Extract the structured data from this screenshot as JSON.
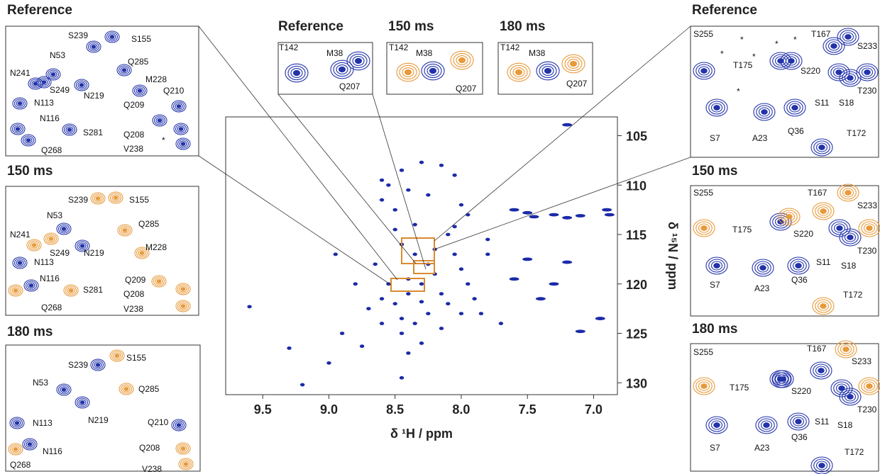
{
  "main": {
    "xlabel": "δ ¹H / ppm",
    "ylabel": "δ ¹⁵N / ppm",
    "xlim": [
      9.78,
      6.82
    ],
    "ylim": [
      103.1,
      131.2
    ],
    "xticks": [
      9.5,
      {
        "value": 9,
        "label": "9.0"
      },
      8.5,
      {
        "value": 8,
        "label": "8.0"
      },
      7.5,
      {
        "value": 7,
        "label": "7.0"
      }
    ],
    "yticks": [
      105,
      110,
      115,
      120,
      125,
      130
    ],
    "peaks": {
      "x": [
        8.45,
        8.35,
        8.25,
        8.2,
        8.3,
        8.4,
        8.5,
        8.6,
        8.15,
        8.1,
        8.0,
        8.25,
        8.35,
        8.45,
        8.55,
        8.65,
        8.05,
        8.1,
        8.4,
        8.2,
        8.3,
        8.45,
        8.3,
        8.4,
        8.6,
        8.7,
        7.95,
        7.9,
        7.85,
        8.15,
        8.0,
        7.8,
        8.5,
        8.35,
        8.55,
        8.6,
        8.4,
        8.25,
        8.15,
        8.05,
        8.6,
        8.45,
        8.3,
        8.0,
        7.95,
        8.05,
        8.5,
        9.6,
        9.3,
        9.2,
        9.0,
        8.9,
        8.8,
        8.95,
        7.6,
        7.5,
        7.45,
        7.3,
        7.2,
        7.1,
        6.9,
        6.88,
        7.2,
        7.5,
        7.6,
        7.3,
        7.2,
        7.4,
        6.95,
        7.1,
        7.7,
        7.8,
        8.75,
        8.45
      ],
      "y": [
        116,
        117,
        118,
        119,
        120,
        121,
        122,
        121.5,
        121,
        122,
        123,
        123,
        124,
        123.5,
        120,
        118,
        117,
        115,
        119.5,
        116.5,
        121.8,
        125,
        126,
        127,
        124,
        122.5,
        120,
        121.5,
        123,
        124.5,
        118.5,
        117,
        114.5,
        114,
        110,
        109.5,
        110.5,
        111,
        108,
        109,
        111.5,
        108.5,
        107.7,
        112,
        113,
        114.2,
        112.5,
        122.3,
        126.5,
        130.2,
        128,
        125,
        120,
        117,
        112.5,
        112.8,
        113.2,
        113,
        113.3,
        113.1,
        112.5,
        113,
        103.9,
        117.5,
        119.5,
        120,
        117.8,
        121.5,
        123.5,
        124.8,
        124,
        115.5,
        126.3,
        129.5
      ]
    }
  },
  "panels": [
    {
      "title": "Reference",
      "labels": [
        "S239",
        "S155",
        "N53",
        "Q285",
        "N241",
        "S249",
        "N219",
        "M228",
        "Q210",
        "N113",
        "Q209",
        "N116",
        "S281",
        "Q208",
        "*",
        "V238",
        "Q268"
      ]
    },
    {
      "title": "150 ms",
      "labels": [
        "S239",
        "S155",
        "N53",
        "Q285",
        "N241",
        "S249",
        "N219",
        "M228",
        "N113",
        "Q209",
        "N116",
        "S281",
        "Q208",
        "V238",
        "Q268"
      ]
    },
    {
      "title": "180 ms",
      "labels": [
        "S239",
        "S155",
        "N53",
        "Q285",
        "N113",
        "N219",
        "Q210",
        "N116",
        "Q208",
        "Q268",
        "V238"
      ]
    },
    {
      "title": "Reference",
      "labels": [
        "T142",
        "M38",
        "Q207"
      ]
    },
    {
      "title": "150 ms",
      "labels": [
        "T142",
        "M38",
        "Q207"
      ]
    },
    {
      "title": "180 ms",
      "labels": [
        "T142",
        "M38",
        "Q207"
      ]
    },
    {
      "title": "Reference",
      "labels": [
        "S255",
        "T167",
        "S233",
        "T175",
        "S220",
        "T230",
        "S11",
        "S18",
        "S7",
        "A23",
        "Q36",
        "T172",
        "*",
        "*",
        "*",
        "*",
        "*",
        "*"
      ]
    },
    {
      "title": "150 ms",
      "labels": [
        "S255",
        "T167",
        "S233",
        "T175",
        "S220",
        "T230",
        "S11",
        "S18",
        "S7",
        "A23",
        "Q36",
        "T172"
      ]
    },
    {
      "title": "180 ms",
      "labels": [
        "S255",
        "T167",
        "S233",
        "T175",
        "S220",
        "T230",
        "S11",
        "S18",
        "S7",
        "A23",
        "Q36",
        "T172"
      ]
    }
  ]
}
